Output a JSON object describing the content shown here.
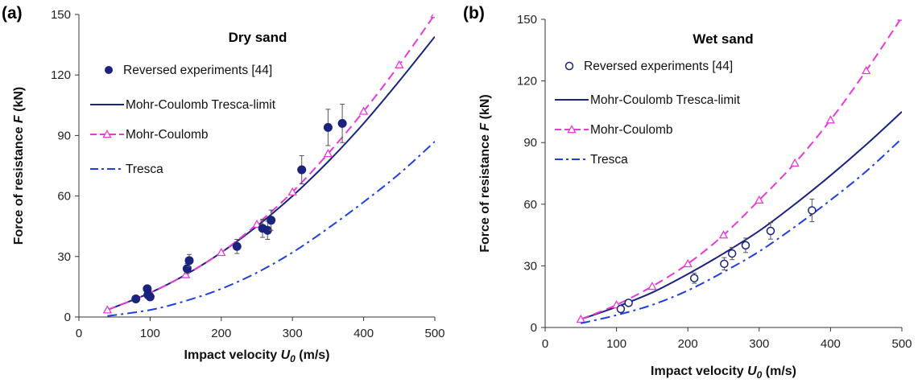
{
  "chart_data": [
    {
      "type": "line",
      "panel_label": "(a)",
      "title": "Dry sand",
      "xlabel": "Impact velocity U0 (m/s)",
      "xlabel_parts": {
        "prefix": "Impact velocity ",
        "var": "U",
        "sub": "0",
        "suffix": " (m/s)"
      },
      "ylabel": "Force of resistance F (kN)",
      "ylabel_parts": {
        "prefix": "Force of resistance ",
        "var": "F",
        "suffix": " (kN)"
      },
      "xlim": [
        0,
        500
      ],
      "ylim": [
        0,
        150
      ],
      "xticks": [
        0,
        100,
        200,
        300,
        400,
        500
      ],
      "yticks": [
        0,
        30,
        60,
        90,
        120,
        150
      ],
      "legend_position": "top-left",
      "experiments": {
        "name": "Reversed experiments [44]",
        "marker": "filled-circle",
        "color": "#1a237e",
        "points": [
          {
            "x": 80,
            "y": 9,
            "err": 0
          },
          {
            "x": 96,
            "y": 14,
            "err": 0
          },
          {
            "x": 97,
            "y": 11,
            "err": 0
          },
          {
            "x": 100,
            "y": 10,
            "err": 0
          },
          {
            "x": 152,
            "y": 24,
            "err": 2.5
          },
          {
            "x": 155,
            "y": 28,
            "err": 3
          },
          {
            "x": 222,
            "y": 35,
            "err": 3.5
          },
          {
            "x": 258,
            "y": 44,
            "err": 4.5
          },
          {
            "x": 265,
            "y": 43,
            "err": 4.5
          },
          {
            "x": 270,
            "y": 48,
            "err": 5
          },
          {
            "x": 313,
            "y": 73,
            "err": 7
          },
          {
            "x": 350,
            "y": 94,
            "err": 9
          },
          {
            "x": 370,
            "y": 96,
            "err": 9.5
          }
        ]
      },
      "series": [
        {
          "name": "Mohr-Coulomb Tresca-limit",
          "style": "solid",
          "color": "#1a237e",
          "x": [
            40,
            100,
            150,
            200,
            250,
            300,
            350,
            400,
            450,
            500
          ],
          "y": [
            3.5,
            12,
            21,
            32,
            45,
            60,
            77,
            96,
            117,
            139
          ]
        },
        {
          "name": "Mohr-Coulomb",
          "style": "dashed",
          "marker": "open-triangle",
          "color": "#e83bd6",
          "x": [
            40,
            100,
            150,
            200,
            250,
            300,
            350,
            400,
            450,
            500
          ],
          "y": [
            3.5,
            12,
            21,
            32,
            46,
            62,
            81,
            102,
            125,
            150
          ]
        },
        {
          "name": "Tresca",
          "style": "dash-dot",
          "color": "#1f3fe0",
          "x": [
            40,
            100,
            150,
            200,
            250,
            300,
            350,
            400,
            450,
            500
          ],
          "y": [
            0.5,
            3.5,
            8,
            14,
            22,
            32,
            44,
            57,
            71,
            87
          ]
        }
      ]
    },
    {
      "type": "line",
      "panel_label": "(b)",
      "title": "Wet sand",
      "xlabel": "Impact velocity U0 (m/s)",
      "xlabel_parts": {
        "prefix": "Impact velocity ",
        "var": "U",
        "sub": "0",
        "suffix": " (m/s)"
      },
      "ylabel": "Force of resistance F (kN)",
      "ylabel_parts": {
        "prefix": "Force of resistance ",
        "var": "F",
        "suffix": " (kN)"
      },
      "xlim": [
        0,
        500
      ],
      "ylim": [
        0,
        150
      ],
      "xticks": [
        0,
        100,
        200,
        300,
        400,
        500
      ],
      "yticks": [
        0,
        30,
        60,
        90,
        120,
        150
      ],
      "legend_position": "top-left",
      "experiments": {
        "name": "Reversed experiments [44]",
        "marker": "open-circle",
        "color": "#1a237e",
        "points": [
          {
            "x": 106,
            "y": 9,
            "err": 1.5
          },
          {
            "x": 117,
            "y": 12,
            "err": 1.5
          },
          {
            "x": 209,
            "y": 24,
            "err": 2.5
          },
          {
            "x": 251,
            "y": 31,
            "err": 3
          },
          {
            "x": 262,
            "y": 36,
            "err": 3
          },
          {
            "x": 281,
            "y": 40,
            "err": 3.5
          },
          {
            "x": 316,
            "y": 47,
            "err": 4
          },
          {
            "x": 374,
            "y": 57,
            "err": 5.5
          }
        ]
      },
      "series": [
        {
          "name": "Mohr-Coulomb Tresca-limit",
          "style": "solid",
          "color": "#1a237e",
          "x": [
            50,
            100,
            150,
            200,
            250,
            300,
            350,
            400,
            450,
            500
          ],
          "y": [
            4,
            10,
            17,
            26,
            36,
            47,
            60,
            74,
            89,
            105
          ]
        },
        {
          "name": "Mohr-Coulomb",
          "style": "dashed",
          "marker": "open-triangle",
          "color": "#e83bd6",
          "x": [
            50,
            100,
            150,
            200,
            250,
            300,
            350,
            400,
            450,
            500
          ],
          "y": [
            4,
            11,
            20,
            31,
            45,
            62,
            80,
            101,
            125,
            151
          ]
        },
        {
          "name": "Tresca",
          "style": "dash-dot",
          "color": "#1f3fe0",
          "x": [
            50,
            100,
            150,
            200,
            250,
            300,
            350,
            400,
            450,
            500
          ],
          "y": [
            2,
            6,
            11,
            18,
            27,
            37,
            49,
            62,
            76,
            92
          ]
        }
      ]
    }
  ]
}
